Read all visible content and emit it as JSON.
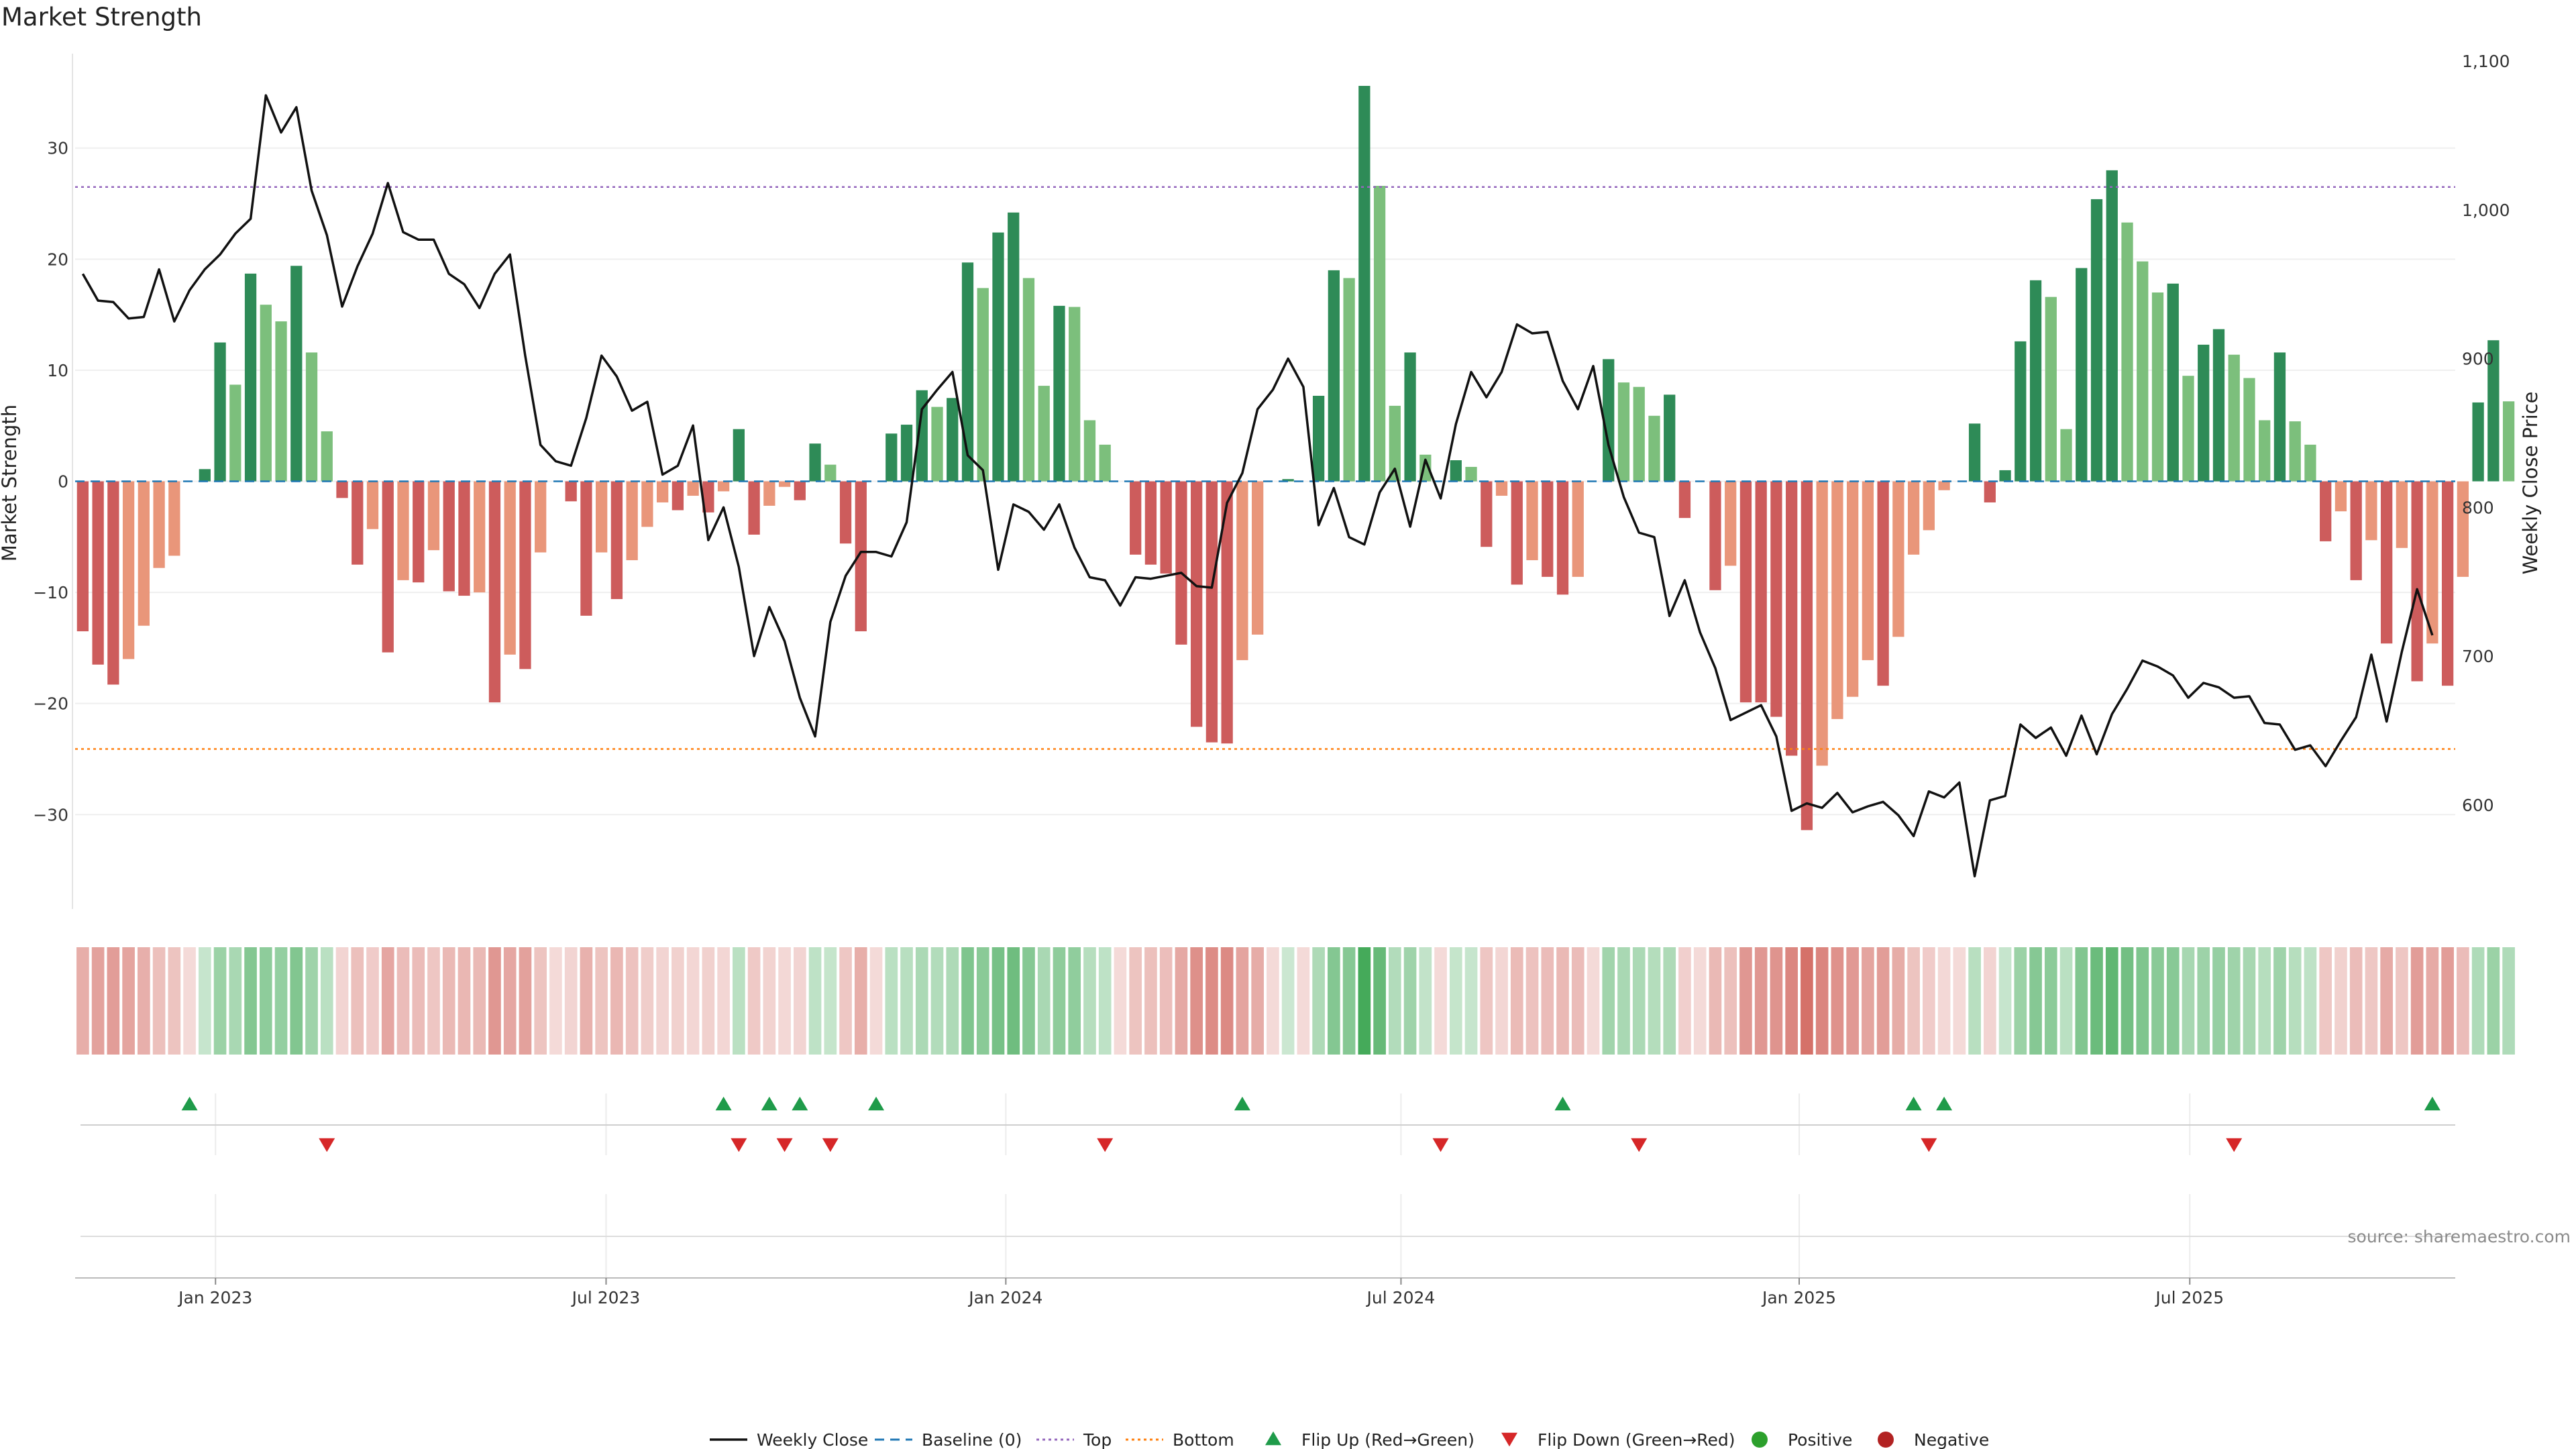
{
  "chart_data": {
    "type": "bar",
    "title": "Market Strength",
    "ylabel": "Market Strength",
    "y2label": "Weekly Close Price",
    "ylim": [
      -38.5,
      38.5
    ],
    "y2lim": [
      530,
      1105
    ],
    "yticks": [
      30,
      20,
      10,
      0,
      -10,
      -20,
      -30
    ],
    "ytick_labels": [
      "30",
      "20",
      "10",
      "0",
      "−10",
      "−20",
      "−30"
    ],
    "y2ticks": [
      600,
      700,
      800,
      900,
      1000,
      1100
    ],
    "y2tick_labels": [
      "600",
      "700",
      "800",
      "900",
      "1,000",
      "1,100"
    ],
    "xticks": [
      8.7,
      34.3,
      60.5,
      86.4,
      112.5,
      138.1
    ],
    "xtick_labels": [
      "Jan 2023",
      "Jul 2023",
      "Jan 2024",
      "Jul 2024",
      "Jan 2025",
      "Jul 2025"
    ],
    "x_range": [
      -0.5,
      155.5
    ],
    "top_level": 26.5,
    "bottom_level": -24.1,
    "values": [
      -13.5,
      -16.5,
      -18.3,
      -16,
      -13,
      -7.8,
      -6.7,
      0,
      1.1,
      12.5,
      8.7,
      18.7,
      15.9,
      14.4,
      19.4,
      11.6,
      4.5,
      -1.5,
      -7.5,
      -4.3,
      -15.4,
      -8.9,
      -9.1,
      -6.2,
      -9.9,
      -10.3,
      -10,
      -19.9,
      -15.6,
      -16.9,
      -6.4,
      0,
      -1.8,
      -12.1,
      -6.4,
      -10.6,
      -7.1,
      -4.1,
      -1.9,
      -2.6,
      -1.3,
      -2.8,
      -0.9,
      4.7,
      -4.8,
      -2.2,
      -0.5,
      -1.7,
      3.4,
      1.5,
      -5.6,
      -13.5,
      0,
      4.3,
      5.1,
      8.2,
      6.7,
      7.5,
      19.7,
      17.4,
      22.4,
      24.2,
      18.3,
      8.6,
      15.8,
      15.7,
      5.5,
      3.3,
      0,
      -6.6,
      -7.5,
      -8.3,
      -14.7,
      -22.1,
      -23.5,
      -23.6,
      -16.1,
      -13.8,
      0,
      0.2,
      0,
      7.7,
      19,
      18.3,
      35.6,
      26.6,
      6.8,
      11.6,
      2.4,
      0,
      1.9,
      1.3,
      -5.9,
      -1.3,
      -9.3,
      -7.1,
      -8.6,
      -10.2,
      -8.6,
      0,
      11,
      8.9,
      8.5,
      5.9,
      7.8,
      -3.3,
      0,
      -9.8,
      -7.6,
      -19.9,
      -19.9,
      -21.2,
      -24.7,
      -31.4,
      -25.6,
      -21.4,
      -19.4,
      -16.1,
      -18.4,
      -14,
      -6.6,
      -4.4,
      -0.8,
      0,
      5.2,
      -1.9,
      1,
      12.6,
      18.1,
      16.6,
      4.7,
      19.2,
      25.4,
      28,
      23.3,
      19.8,
      17,
      17.8,
      9.5,
      12.3,
      13.7,
      11.4,
      9.3,
      5.5,
      11.6,
      5.4,
      3.3,
      -5.4,
      -2.7,
      -8.9,
      -5.3,
      -14.6,
      -6,
      -18,
      -14.6,
      -18.4,
      -8.6,
      7.1,
      12.7,
      7.2
    ],
    "price": [
      957,
      939,
      938,
      927,
      928,
      960,
      925,
      946,
      960,
      970,
      984,
      994,
      1077,
      1052,
      1069,
      1013,
      983,
      935,
      962,
      984,
      1018,
      985,
      980,
      980,
      957,
      950,
      934,
      957,
      970,
      902,
      842,
      831,
      828,
      860,
      902,
      888,
      865,
      871,
      822,
      828,
      855,
      778,
      800,
      760,
      700,
      733,
      710,
      672,
      646,
      723,
      754,
      770,
      770,
      767,
      790,
      866,
      879,
      891,
      835,
      825,
      758,
      802,
      797,
      785,
      802,
      773,
      753,
      751,
      734,
      753,
      752,
      754,
      756,
      747,
      746,
      803,
      823,
      866,
      879,
      900,
      881,
      788,
      813,
      780,
      775,
      810,
      826,
      787,
      832,
      806,
      856,
      891,
      874,
      891,
      923,
      917,
      918,
      885,
      866,
      895,
      842,
      807,
      783,
      780,
      727,
      751,
      716,
      692,
      657,
      662,
      667,
      646,
      596,
      601,
      598,
      608,
      595,
      599,
      602,
      593,
      579,
      609,
      605,
      615,
      552,
      603,
      606,
      654,
      645,
      652,
      633,
      660,
      634,
      661,
      678,
      697,
      693,
      687,
      672,
      682,
      679,
      672,
      673,
      655,
      654,
      637,
      640,
      626,
      643,
      659,
      701,
      656,
      703,
      745,
      714
    ],
    "flip_up_indices": [
      7,
      42,
      45,
      47,
      52,
      76,
      97,
      120,
      122,
      154
    ],
    "flip_down_indices": [
      16,
      43,
      46,
      49,
      67,
      89,
      102,
      121,
      141
    ],
    "colors": {
      "strong_green": "#2e8b57",
      "light_green": "#7cbf7c",
      "strong_red": "#cd5c5c",
      "light_red": "#e9967a",
      "baseline": "#1f77b4",
      "top_line": "#9467bd",
      "bottom_line": "#ff7f0e",
      "flip_up": "#1f9b4a",
      "flip_down": "#d62728",
      "positive": "#2ca02c",
      "negative": "#b22222"
    },
    "legend": [
      {
        "label": "Weekly Close",
        "marker": "line"
      },
      {
        "label": "Baseline (0)",
        "marker": "dash"
      },
      {
        "label": "Top",
        "marker": "dot"
      },
      {
        "label": "Bottom",
        "marker": "dot2"
      },
      {
        "label": "Flip Up (Red→Green)",
        "marker": "tri-up"
      },
      {
        "label": "Flip Down (Green→Red)",
        "marker": "tri-down"
      },
      {
        "label": "Positive",
        "marker": "circle-pos"
      },
      {
        "label": "Negative",
        "marker": "circle-neg"
      }
    ],
    "legend_position": "bottom-center",
    "source": "source: sharemaestro.com"
  }
}
